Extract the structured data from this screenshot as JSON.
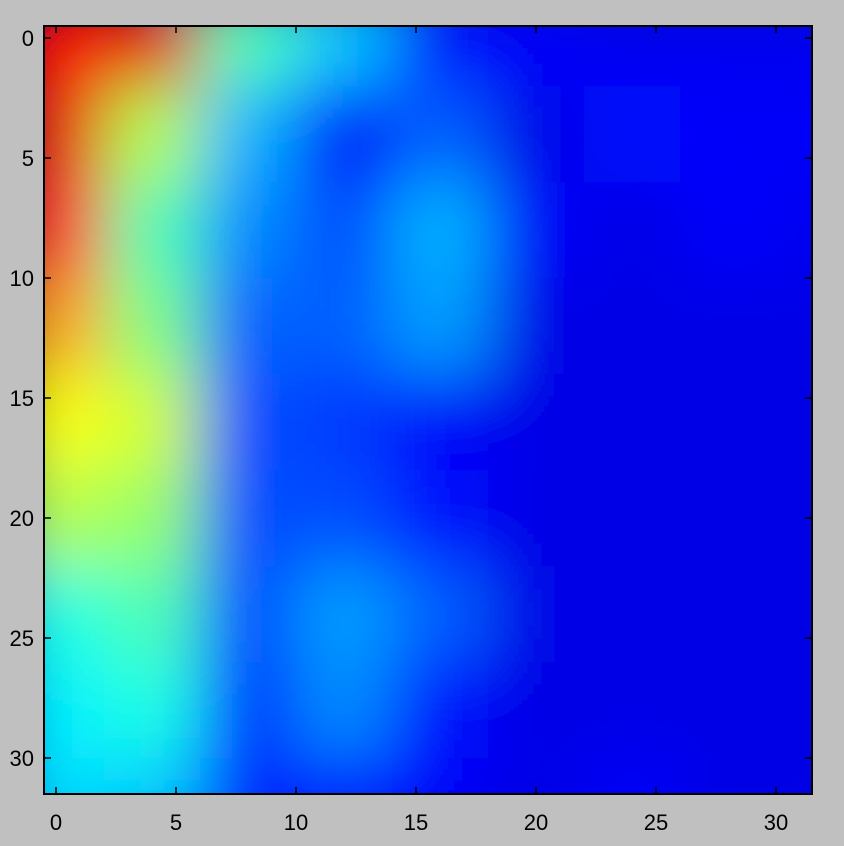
{
  "chart_data": {
    "type": "heatmap",
    "title": "",
    "xlabel": "",
    "ylabel": "",
    "colormap": "jet",
    "y_axis_direction": "top-to-bottom",
    "grid": false,
    "legend": "none",
    "background_color": "#c0c0c0",
    "xlim": [
      -0.5,
      31.5
    ],
    "ylim": [
      -0.5,
      31.5
    ],
    "x_ticks": [
      0,
      5,
      10,
      15,
      20,
      25,
      30
    ],
    "x_tick_labels": [
      "0",
      "5",
      "10",
      "15",
      "20",
      "25",
      "30"
    ],
    "y_ticks": [
      0,
      5,
      10,
      15,
      20,
      25,
      30
    ],
    "y_tick_labels": [
      "0",
      "5",
      "10",
      "15",
      "20",
      "25",
      "30"
    ],
    "value_range": [
      0,
      1
    ],
    "grid_step": 4,
    "values_coarse": [
      [
        0.88,
        0.9,
        0.45,
        0.32,
        0.14,
        0.12,
        0.11,
        0.11,
        0.11
      ],
      [
        0.9,
        0.55,
        0.3,
        0.12,
        0.22,
        0.1,
        0.14,
        0.12,
        0.12
      ],
      [
        0.84,
        0.45,
        0.26,
        0.2,
        0.3,
        0.12,
        0.1,
        0.12,
        0.11
      ],
      [
        0.72,
        0.5,
        0.22,
        0.22,
        0.28,
        0.1,
        0.1,
        0.1,
        0.1
      ],
      [
        0.62,
        0.58,
        0.2,
        0.18,
        0.12,
        0.1,
        0.1,
        0.1,
        0.1
      ],
      [
        0.55,
        0.52,
        0.2,
        0.2,
        0.14,
        0.1,
        0.1,
        0.1,
        0.1
      ],
      [
        0.4,
        0.45,
        0.2,
        0.28,
        0.22,
        0.1,
        0.1,
        0.1,
        0.1
      ],
      [
        0.36,
        0.4,
        0.18,
        0.26,
        0.14,
        0.1,
        0.1,
        0.1,
        0.1
      ],
      [
        0.34,
        0.32,
        0.16,
        0.14,
        0.12,
        0.1,
        0.12,
        0.1,
        0.1
      ]
    ]
  }
}
